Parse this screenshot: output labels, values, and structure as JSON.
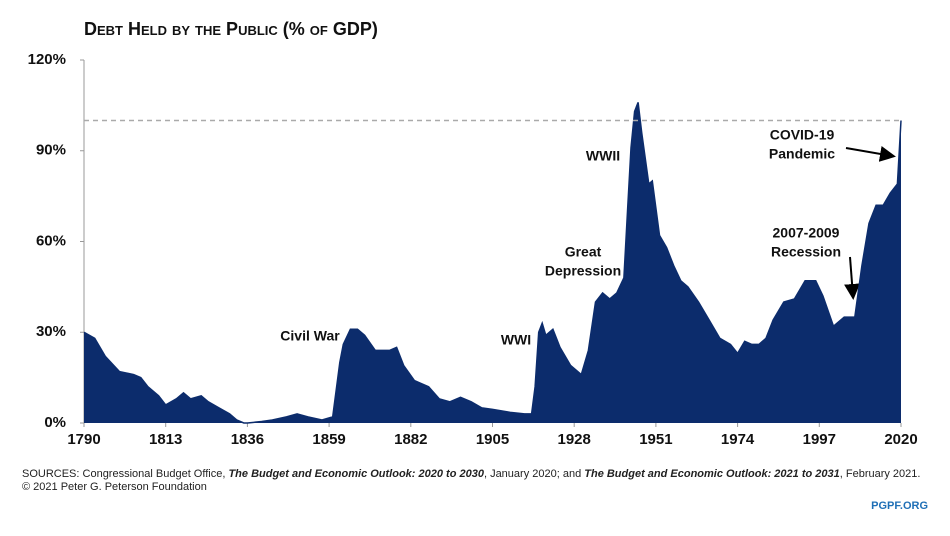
{
  "chart_data": {
    "type": "area",
    "title": "Debt Held by the Public (% of GDP)",
    "x": [
      1790,
      1793,
      1796,
      1800,
      1804,
      1806,
      1808,
      1811,
      1813,
      1816,
      1818,
      1820,
      1823,
      1825,
      1828,
      1831,
      1833,
      1835,
      1836,
      1840,
      1843,
      1847,
      1850,
      1853,
      1857,
      1860,
      1862,
      1863,
      1865,
      1867,
      1869,
      1872,
      1876,
      1878,
      1880,
      1883,
      1887,
      1890,
      1893,
      1896,
      1899,
      1902,
      1905,
      1910,
      1914,
      1916,
      1917,
      1918,
      1919,
      1920,
      1922,
      1924,
      1927,
      1930,
      1932,
      1934,
      1936,
      1938,
      1940,
      1942,
      1943,
      1944,
      1945,
      1946,
      1947,
      1949,
      1950,
      1952,
      1954,
      1956,
      1958,
      1960,
      1963,
      1966,
      1969,
      1972,
      1974,
      1976,
      1978,
      1980,
      1982,
      1984,
      1987,
      1990,
      1993,
      1996,
      1998,
      2001,
      2004,
      2007,
      2009,
      2011,
      2013,
      2015,
      2017,
      2019,
      2020
    ],
    "values": [
      30,
      28,
      22,
      17,
      16,
      15,
      12,
      9,
      6,
      8,
      10,
      8,
      9,
      7,
      5,
      3,
      1,
      0,
      0,
      0.5,
      1,
      2,
      3,
      2,
      1,
      2,
      20,
      26,
      31,
      31,
      29,
      24,
      24,
      25,
      19,
      14,
      12,
      8,
      7,
      8.5,
      7,
      5,
      4.5,
      3.5,
      3,
      3,
      12,
      30,
      33,
      29,
      31,
      25,
      19,
      16,
      24,
      40,
      43,
      41,
      43,
      48,
      70,
      91,
      103,
      106,
      96,
      79,
      80,
      62,
      58,
      52,
      47,
      45,
      40,
      34,
      28,
      26,
      23,
      27,
      26,
      26,
      28,
      34,
      40,
      41,
      47,
      47,
      42,
      32,
      35,
      35,
      52,
      66,
      72,
      72,
      76,
      79,
      100
    ],
    "color": "#0c2c6c",
    "xlim": [
      1790,
      2020
    ],
    "xticks": [
      1790,
      1813,
      1836,
      1859,
      1882,
      1905,
      1928,
      1951,
      1974,
      1997,
      2020
    ],
    "ylim": [
      0,
      120
    ],
    "yticks": [
      {
        "value": 0,
        "label": "0%"
      },
      {
        "value": 30,
        "label": "30%"
      },
      {
        "value": 60,
        "label": "60%"
      },
      {
        "value": 90,
        "label": "90%"
      },
      {
        "value": 120,
        "label": "120%"
      }
    ],
    "reference_line": 100,
    "annotations": [
      [
        "Civil War"
      ],
      [
        "WWI"
      ],
      [
        "Great",
        "Depression"
      ],
      [
        "WWII"
      ],
      [
        "2007-2009",
        "Recession"
      ],
      [
        "COVID-19",
        "Pandemic"
      ]
    ],
    "source": [
      "SOURCES: Congressional Budget Office, ",
      "The Budget and Economic Outlook: 2020 to 2030",
      ", January 2020; and ",
      "The Budget and Economic Outlook: 2021 to 2031",
      ", February 2021."
    ],
    "copyright": "© 2021 Peter G. Peterson Foundation",
    "site": "PGPF.ORG"
  }
}
